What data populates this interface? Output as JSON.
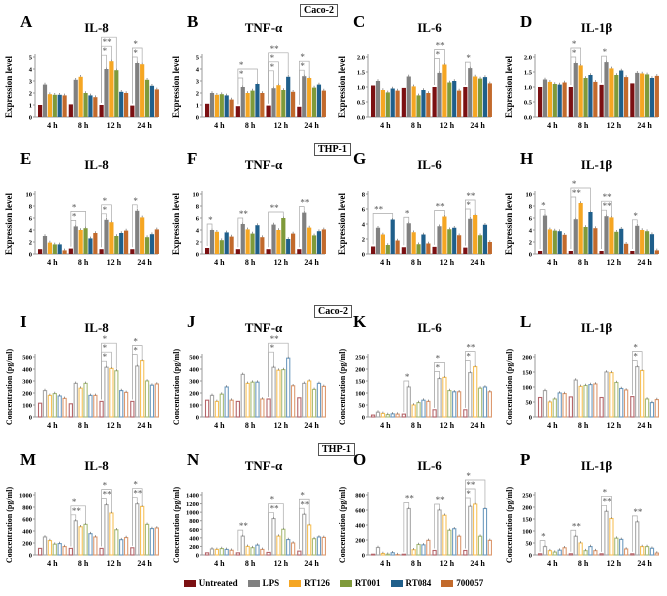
{
  "labels": {
    "caco_top": "Caco-2",
    "thp_top": "THP-1",
    "caco_bottom": "Caco-2",
    "thp_bottom": "THP-1"
  },
  "legend": [
    {
      "name": "Untreated",
      "color": "#7b1012"
    },
    {
      "name": "LPS",
      "color": "#808080"
    },
    {
      "name": "RT126",
      "color": "#f5a623"
    },
    {
      "name": "RT001",
      "color": "#7f9a3a"
    },
    {
      "name": "RT084",
      "color": "#1f5f8b"
    },
    {
      "name": "700057",
      "color": "#c26a2c"
    }
  ],
  "chart_data": [
    {
      "type": "bar",
      "letter": "A",
      "title": "IL-8",
      "ylabel": "Expression level",
      "ylim": [
        0,
        5
      ],
      "ticks": [
        "0",
        "1",
        "2",
        "3",
        "4",
        "5"
      ],
      "categories": [
        "4 h",
        "8 h",
        "12 h",
        "24 h"
      ],
      "style": "filled",
      "values": [
        [
          1,
          2.7,
          1.9,
          1.85,
          1.85,
          1.8
        ],
        [
          1.05,
          3.1,
          3.35,
          2,
          1.8,
          1.65
        ],
        [
          1,
          4,
          4.65,
          3.9,
          2.1,
          2
        ],
        [
          0.95,
          4.5,
          4.4,
          3.1,
          2.6,
          2.3
        ]
      ],
      "sig": [
        [
          2,
          1,
          "*"
        ],
        [
          2,
          2,
          "**"
        ],
        [
          2,
          3,
          "*"
        ],
        [
          3,
          1,
          "*"
        ],
        [
          3,
          2,
          "*"
        ]
      ]
    },
    {
      "type": "bar",
      "letter": "B",
      "title": "TNF-α",
      "ylabel": "Expression level",
      "ylim": [
        0,
        5
      ],
      "ticks": [
        "0",
        "1",
        "2",
        "3",
        "4",
        "5"
      ],
      "categories": [
        "4 h",
        "8 h",
        "12 h",
        "24 h"
      ],
      "style": "filled",
      "values": [
        [
          1.1,
          2,
          1.85,
          1.9,
          1.8,
          1.45
        ],
        [
          0.9,
          2.5,
          2,
          2.2,
          2.75,
          2
        ],
        [
          0.95,
          2.4,
          2.65,
          2.25,
          3.35,
          2.1
        ],
        [
          0.85,
          3.4,
          3.25,
          2.45,
          2.7,
          2.2
        ]
      ],
      "sig": [
        [
          1,
          1,
          "*"
        ],
        [
          1,
          4,
          "*"
        ],
        [
          2,
          1,
          "*"
        ],
        [
          2,
          2,
          "*"
        ],
        [
          2,
          4,
          "**"
        ],
        [
          3,
          1,
          "*"
        ],
        [
          3,
          2,
          "*"
        ]
      ]
    },
    {
      "type": "bar",
      "letter": "C",
      "title": "IL-6",
      "ylabel": "Expression level",
      "ylim": [
        0,
        2
      ],
      "ticks": [
        "0.0",
        "0.5",
        "1.0",
        "1.5",
        "2.0"
      ],
      "categories": [
        "4 h",
        "8 h",
        "12 h",
        "24 h"
      ],
      "style": "filled",
      "values": [
        [
          1.05,
          1.2,
          0.9,
          0.82,
          0.95,
          0.88
        ],
        [
          0.97,
          1.35,
          1.02,
          0.72,
          0.9,
          0.8
        ],
        [
          1,
          1.47,
          1.75,
          1.15,
          1.2,
          0.88
        ],
        [
          1,
          1.63,
          1.35,
          1.28,
          1.33,
          1.12
        ]
      ],
      "sig": [
        [
          2,
          1,
          "*"
        ],
        [
          2,
          2,
          "**"
        ],
        [
          3,
          1,
          "*"
        ]
      ]
    },
    {
      "type": "bar",
      "letter": "D",
      "title": "IL-1β",
      "ylabel": "Expression level",
      "ylim": [
        0,
        2
      ],
      "ticks": [
        "0.0",
        "0.5",
        "1.0",
        "1.5",
        "2.0"
      ],
      "categories": [
        "4 h",
        "8 h",
        "12 h",
        "24 h"
      ],
      "style": "filled",
      "values": [
        [
          1,
          1.25,
          1.17,
          1.1,
          1.08,
          1.15
        ],
        [
          1,
          1.8,
          1.72,
          1.3,
          1.4,
          1.17
        ],
        [
          1.07,
          1.83,
          1.62,
          1.4,
          1.55,
          1.33
        ],
        [
          1.12,
          1.47,
          1.45,
          1.42,
          1.3,
          1.37
        ]
      ],
      "sig": [
        [
          1,
          1,
          "*"
        ],
        [
          1,
          2,
          "*"
        ],
        [
          2,
          1,
          "*"
        ]
      ]
    },
    {
      "type": "bar",
      "letter": "E",
      "title": "IL-8",
      "ylabel": "Expression level",
      "ylim": [
        0,
        10
      ],
      "ticks": [
        "0",
        "2",
        "4",
        "6",
        "8",
        "10"
      ],
      "categories": [
        "4 h",
        "8 h",
        "12 h",
        "24 h"
      ],
      "style": "filled",
      "values": [
        [
          0.8,
          3,
          1.9,
          1.6,
          1.6,
          0.6
        ],
        [
          0.9,
          4.6,
          4,
          4.3,
          2.6,
          3.5
        ],
        [
          0.8,
          5.7,
          5.3,
          3,
          3.5,
          3.9
        ],
        [
          0.8,
          7.2,
          6.1,
          2.8,
          3.3,
          4.1
        ]
      ],
      "sig": [
        [
          1,
          1,
          "*"
        ],
        [
          1,
          3,
          "*"
        ],
        [
          2,
          1,
          "*"
        ],
        [
          2,
          2,
          "*"
        ],
        [
          3,
          1,
          "*"
        ]
      ]
    },
    {
      "type": "bar",
      "letter": "F",
      "title": "TNF-α",
      "ylabel": "Expression level",
      "ylim": [
        0,
        10
      ],
      "ticks": [
        "0",
        "2",
        "4",
        "6",
        "8",
        "10"
      ],
      "categories": [
        "4 h",
        "8 h",
        "12 h",
        "24 h"
      ],
      "style": "filled",
      "values": [
        [
          1,
          4,
          3.7,
          2.3,
          3.6,
          2.9
        ],
        [
          0.8,
          5,
          4.1,
          3.4,
          4.8,
          2.8
        ],
        [
          0.8,
          4.9,
          4,
          6,
          2.5,
          3.4
        ],
        [
          0.8,
          6.9,
          4.4,
          3.1,
          3.8,
          4.1
        ]
      ],
      "sig": [
        [
          0,
          1,
          "*"
        ],
        [
          1,
          1,
          "**"
        ],
        [
          2,
          3,
          "**"
        ],
        [
          3,
          1,
          "**"
        ]
      ]
    },
    {
      "type": "bar",
      "letter": "G",
      "title": "IL-6",
      "ylabel": "Expression level",
      "ylim": [
        0,
        8
      ],
      "ticks": [
        "0",
        "2",
        "4",
        "6",
        "8"
      ],
      "categories": [
        "4 h",
        "8 h",
        "12 h",
        "24 h"
      ],
      "style": "filled",
      "values": [
        [
          1,
          3.5,
          2.6,
          1.2,
          4.6,
          1.8
        ],
        [
          0.9,
          4.1,
          2.9,
          1.3,
          2.6,
          1.4
        ],
        [
          0.95,
          3.7,
          5,
          3.3,
          3.5,
          2.5
        ],
        [
          0.85,
          4.7,
          5.2,
          2.5,
          3.9,
          1.6
        ]
      ],
      "sig": [
        [
          0,
          4,
          "**"
        ],
        [
          1,
          1,
          "*"
        ],
        [
          2,
          2,
          "**"
        ],
        [
          3,
          1,
          "*"
        ],
        [
          3,
          2,
          "**"
        ]
      ]
    },
    {
      "type": "bar",
      "letter": "H",
      "title": "IL-1β",
      "ylabel": "Expression level",
      "ylim": [
        0,
        10
      ],
      "ticks": [
        "0",
        "2",
        "4",
        "6",
        "8",
        "10"
      ],
      "categories": [
        "4 h",
        "8 h",
        "12 h",
        "24 h"
      ],
      "style": "filled",
      "values": [
        [
          0.5,
          6.4,
          4.1,
          3.9,
          3.8,
          3.2
        ],
        [
          0.5,
          5.8,
          8.5,
          4.5,
          7,
          4.3
        ],
        [
          0.5,
          6.3,
          6.1,
          3.7,
          4.2,
          1.7
        ],
        [
          0.5,
          4.7,
          4,
          3.8,
          3.3,
          0.6
        ]
      ],
      "sig": [
        [
          0,
          1,
          "*"
        ],
        [
          1,
          1,
          "**"
        ],
        [
          1,
          4,
          "*"
        ],
        [
          2,
          1,
          "**"
        ],
        [
          2,
          2,
          "**"
        ],
        [
          3,
          1,
          "*"
        ]
      ]
    },
    {
      "type": "bar",
      "letter": "I",
      "title": "IL-8",
      "ylabel": "Concentration (pg/ml)",
      "ylim": [
        0,
        500
      ],
      "ticks": [
        "0",
        "100",
        "200",
        "300",
        "400",
        "500"
      ],
      "categories": [
        "4 h",
        "8 h",
        "12 h",
        "24 h"
      ],
      "style": "outline",
      "values": [
        [
          115,
          220,
          180,
          195,
          175,
          155
        ],
        [
          110,
          280,
          240,
          280,
          180,
          180
        ],
        [
          130,
          415,
          405,
          385,
          220,
          205
        ],
        [
          130,
          425,
          470,
          300,
          265,
          275
        ]
      ],
      "sig": [
        [
          2,
          1,
          "*"
        ],
        [
          2,
          2,
          "*"
        ],
        [
          2,
          3,
          "*"
        ],
        [
          3,
          1,
          "*"
        ],
        [
          3,
          2,
          "*"
        ]
      ]
    },
    {
      "type": "bar",
      "letter": "J",
      "title": "TNF-α",
      "ylabel": "Concentration (pg/ml)",
      "ylim": [
        0,
        500
      ],
      "ticks": [
        "0",
        "100",
        "200",
        "300",
        "400",
        "500"
      ],
      "categories": [
        "4 h",
        "8 h",
        "12 h",
        "24 h"
      ],
      "style": "outline",
      "values": [
        [
          140,
          180,
          130,
          190,
          250,
          140
        ],
        [
          130,
          355,
          280,
          290,
          290,
          150
        ],
        [
          150,
          415,
          390,
          395,
          490,
          260
        ],
        [
          160,
          280,
          300,
          230,
          280,
          255
        ]
      ],
      "sig": [
        [
          2,
          1,
          "*"
        ],
        [
          2,
          4,
          "**"
        ]
      ]
    },
    {
      "type": "bar",
      "letter": "K",
      "title": "IL-6",
      "ylabel": "Concentration (pg/ml)",
      "ylim": [
        0,
        250
      ],
      "ticks": [
        "0",
        "50",
        "100",
        "150",
        "200",
        "250"
      ],
      "categories": [
        "4 h",
        "8 h",
        "12 h",
        "24 h"
      ],
      "style": "outline",
      "values": [
        [
          8,
          20,
          15,
          10,
          13,
          12
        ],
        [
          12,
          125,
          50,
          60,
          70,
          65
        ],
        [
          30,
          160,
          165,
          110,
          105,
          105
        ],
        [
          30,
          185,
          210,
          120,
          125,
          105
        ]
      ],
      "sig": [
        [
          1,
          1,
          "*"
        ],
        [
          2,
          1,
          "*"
        ],
        [
          2,
          2,
          "*"
        ],
        [
          3,
          1,
          "*"
        ],
        [
          3,
          2,
          "**"
        ]
      ]
    },
    {
      "type": "bar",
      "letter": "L",
      "title": "IL-1β",
      "ylabel": "Concentration (pg/ml)",
      "ylim": [
        0,
        200
      ],
      "ticks": [
        "0",
        "50",
        "100",
        "150",
        "200"
      ],
      "categories": [
        "4 h",
        "8 h",
        "12 h",
        "24 h"
      ],
      "style": "outline",
      "values": [
        [
          65,
          88,
          50,
          60,
          80,
          78
        ],
        [
          67,
          123,
          102,
          105,
          108,
          110
        ],
        [
          65,
          150,
          148,
          115,
          95,
          90
        ],
        [
          68,
          168,
          155,
          60,
          48,
          58
        ]
      ],
      "sig": [
        [
          3,
          1,
          "*"
        ],
        [
          3,
          2,
          "*"
        ]
      ]
    },
    {
      "type": "bar",
      "letter": "M",
      "title": "IL-8",
      "ylabel": "Concentration (pg/ml)",
      "ylim": [
        0,
        1000
      ],
      "ticks": [
        "0",
        "200",
        "400",
        "600",
        "800",
        "1000"
      ],
      "categories": [
        "4 h",
        "8 h",
        "12 h",
        "24 h"
      ],
      "style": "outline",
      "values": [
        [
          110,
          300,
          240,
          180,
          190,
          140
        ],
        [
          110,
          570,
          470,
          510,
          355,
          300
        ],
        [
          110,
          840,
          700,
          420,
          255,
          290
        ],
        [
          120,
          855,
          810,
          510,
          440,
          450
        ]
      ],
      "sig": [
        [
          1,
          1,
          "**"
        ],
        [
          1,
          3,
          "*"
        ],
        [
          2,
          1,
          "**"
        ],
        [
          2,
          2,
          "*"
        ],
        [
          3,
          1,
          "**"
        ],
        [
          3,
          2,
          "*"
        ]
      ]
    },
    {
      "type": "bar",
      "letter": "N",
      "title": "TNF-α",
      "ylabel": "Concentration (pg/ml)",
      "ylim": [
        0,
        1400
      ],
      "ticks": [
        "0",
        "200",
        "400",
        "600",
        "800",
        "1000",
        "1200",
        "1400"
      ],
      "categories": [
        "4 h",
        "8 h",
        "12 h",
        "24 h"
      ],
      "style": "outline",
      "values": [
        [
          50,
          140,
          130,
          150,
          130,
          110
        ],
        [
          50,
          440,
          200,
          170,
          230,
          130
        ],
        [
          60,
          850,
          440,
          600,
          360,
          280
        ],
        [
          90,
          950,
          700,
          380,
          420,
          410
        ]
      ],
      "sig": [
        [
          1,
          1,
          "**"
        ],
        [
          2,
          1,
          "**"
        ],
        [
          2,
          3,
          "*"
        ],
        [
          3,
          1,
          "**"
        ],
        [
          3,
          2,
          "*"
        ]
      ]
    },
    {
      "type": "bar",
      "letter": "O",
      "title": "IL-6",
      "ylabel": "Concentration (pg/ml)",
      "ylim": [
        0,
        800
      ],
      "ticks": [
        "0",
        "200",
        "400",
        "600",
        "800"
      ],
      "categories": [
        "4 h",
        "8 h",
        "12 h",
        "24 h"
      ],
      "style": "outline",
      "values": [
        [
          10,
          100,
          20,
          10,
          30,
          5
        ],
        [
          10,
          620,
          70,
          140,
          135,
          195
        ],
        [
          60,
          600,
          530,
          330,
          350,
          250
        ],
        [
          60,
          650,
          680,
          250,
          620,
          195
        ]
      ],
      "sig": [
        [
          1,
          1,
          "**"
        ],
        [
          2,
          1,
          "**"
        ],
        [
          3,
          1,
          "*"
        ],
        [
          3,
          2,
          "**"
        ],
        [
          3,
          4,
          "*"
        ]
      ]
    },
    {
      "type": "bar",
      "letter": "P",
      "title": "IL-1β",
      "ylabel": "Concentration (pg/ml)",
      "ylim": [
        0,
        250
      ],
      "ticks": [
        "0",
        "50",
        "100",
        "150",
        "200",
        "250"
      ],
      "categories": [
        "4 h",
        "8 h",
        "12 h",
        "24 h"
      ],
      "style": "outline",
      "values": [
        [
          5,
          35,
          18,
          12,
          20,
          30
        ],
        [
          5,
          78,
          50,
          18,
          35,
          18
        ],
        [
          5,
          182,
          152,
          70,
          65,
          25
        ],
        [
          5,
          138,
          35,
          35,
          28,
          8
        ]
      ],
      "sig": [
        [
          0,
          1,
          "*"
        ],
        [
          1,
          1,
          "**"
        ],
        [
          2,
          1,
          "**"
        ],
        [
          2,
          2,
          "*"
        ],
        [
          3,
          1,
          "**"
        ]
      ]
    }
  ]
}
